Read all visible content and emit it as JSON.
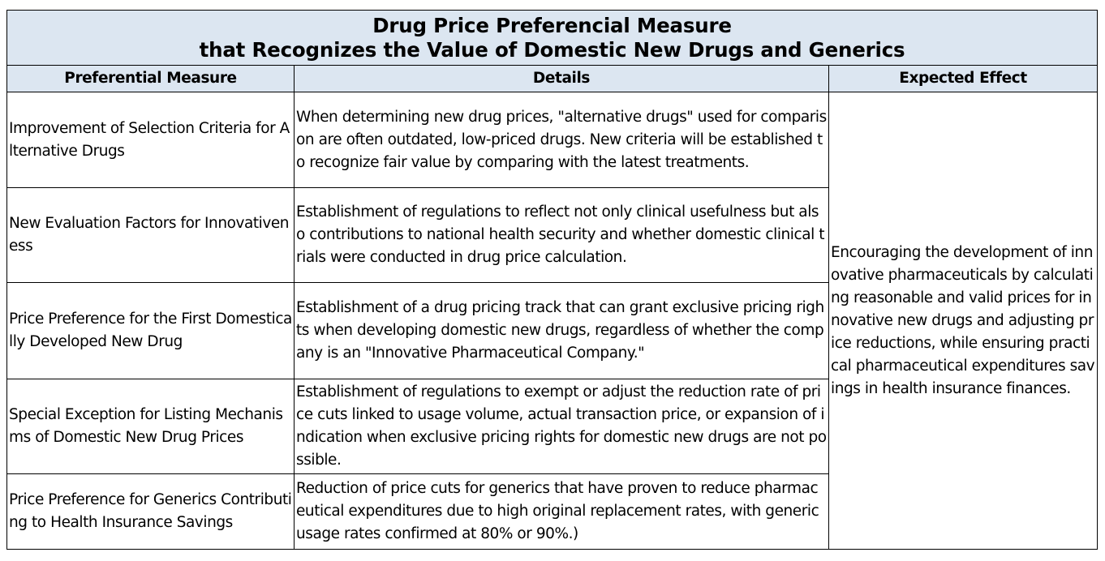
{
  "title": {
    "line1": "Drug Price Preferencial Measure",
    "line2": "that Recognizes the Value of Domestic New Drugs and Generics"
  },
  "headers": {
    "measure": "Preferential Measure",
    "details": "Details",
    "effect": "Expected Effect"
  },
  "rows": [
    {
      "measure": "Improvement of Selection Criteria for Alternative Drugs",
      "details": "When determining new drug prices, \"alternative drugs\" used for comparison are often outdated, low-priced drugs. New criteria will be established to recognize fair value by comparing with the latest treatments."
    },
    {
      "measure": "New Evaluation Factors for Innovativeness",
      "details": "Establishment of regulations to reflect not only clinical usefulness but also contributions to national health security and whether domestic clinical trials were conducted in drug price calculation."
    },
    {
      "measure": "Price Preference for the First Domestically Developed New Drug",
      "details": "Establishment of a drug pricing track that can grant exclusive pricing rights when developing domestic new drugs, regardless of whether the company is an \"Innovative Pharmaceutical Company.\""
    },
    {
      "measure": "Special Exception for Listing Mechanisms of Domestic New Drug Prices",
      "details": "Establishment of regulations to exempt or adjust the reduction rate of price cuts linked to usage volume, actual transaction price, or expansion of indication when exclusive pricing rights for domestic new drugs are not possible."
    },
    {
      "measure": "Price Preference for Generics Contributing to Health Insurance Savings",
      "details": "Reduction of price cuts for generics that have proven to reduce pharmaceutical expenditures due to high original replacement rates, with generic usage rates confirmed at 80% or 90%.)"
    }
  ],
  "expected_effect": "Encouraging the development of innovative pharmaceuticals by calculating reasonable and valid prices for innovative new drugs and adjusting price reductions, while ensuring practical pharmaceutical expenditures savings in health insurance finances."
}
